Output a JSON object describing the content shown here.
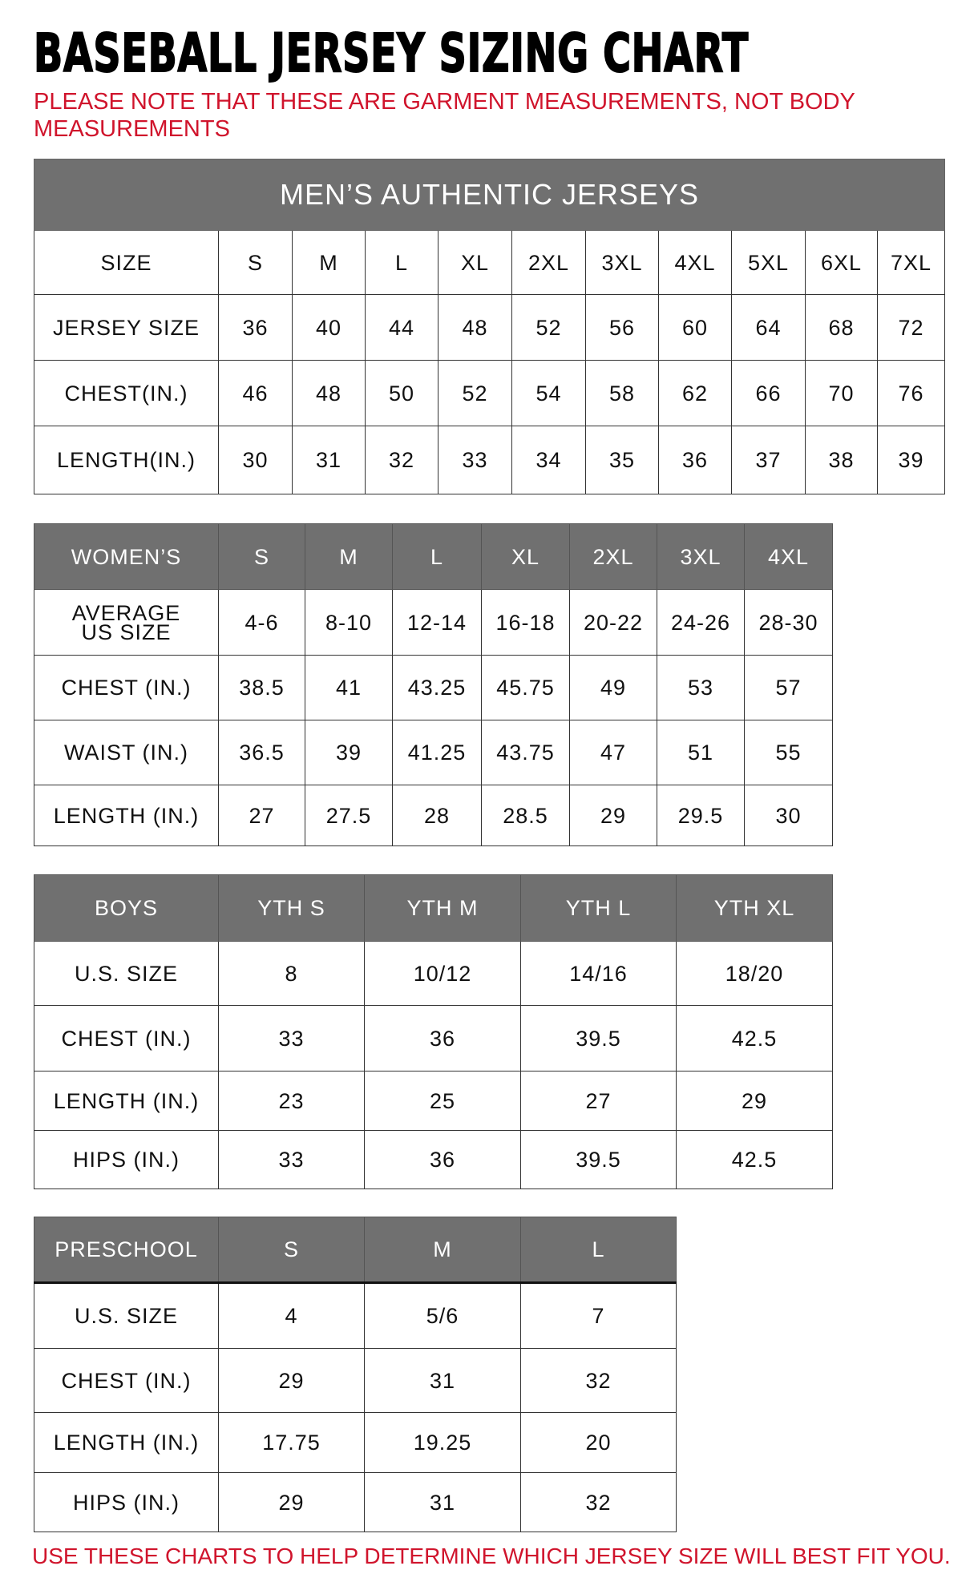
{
  "title": "BASEBALL JERSEY SIZING CHART",
  "note": "PLEASE NOTE THAT THESE ARE GARMENT MEASUREMENTS, NOT BODY MEASUREMENTS",
  "footer": "USE THESE CHARTS TO HELP DETERMINE WHICH JERSEY SIZE WILL BEST FIT YOU.",
  "colors": {
    "header_gray": "#707070",
    "note_red": "#d0142c"
  },
  "tables": [
    {
      "title": "MEN’S AUTHENTIC JERSEYS",
      "header": [
        "SIZE",
        "S",
        "M",
        "L",
        "XL",
        "2XL",
        "3XL",
        "4XL",
        "5XL",
        "6XL",
        "7XL"
      ],
      "header_style": "white",
      "rows": [
        [
          "JERSEY SIZE",
          "36",
          "40",
          "44",
          "48",
          "52",
          "56",
          "60",
          "64",
          "68",
          "72"
        ],
        [
          "CHEST(IN.)",
          "46",
          "48",
          "50",
          "52",
          "54",
          "58",
          "62",
          "66",
          "70",
          "76"
        ],
        [
          "LENGTH(IN.)",
          "30",
          "31",
          "32",
          "33",
          "34",
          "35",
          "36",
          "37",
          "38",
          "39"
        ]
      ]
    },
    {
      "header": [
        "WOMEN’S",
        "S",
        "M",
        "L",
        "XL",
        "2XL",
        "3XL",
        "4XL"
      ],
      "rows": [
        [
          "AVERAGE US SIZE",
          "4-6",
          "8-10",
          "12-14",
          "16-18",
          "20-22",
          "24-26",
          "28-30"
        ],
        [
          "CHEST (IN.)",
          "38.5",
          "41",
          "43.25",
          "45.75",
          "49",
          "53",
          "57"
        ],
        [
          "WAIST (IN.)",
          "36.5",
          "39",
          "41.25",
          "43.75",
          "47",
          "51",
          "55"
        ],
        [
          "LENGTH (IN.)",
          "27",
          "27.5",
          "28",
          "28.5",
          "29",
          "29.5",
          "30"
        ]
      ]
    },
    {
      "header": [
        "BOYS",
        "YTH S",
        "YTH M",
        "YTH L",
        "YTH XL"
      ],
      "rows": [
        [
          "U.S. SIZE",
          "8",
          "10/12",
          "14/16",
          "18/20"
        ],
        [
          "CHEST (IN.)",
          "33",
          "36",
          "39.5",
          "42.5"
        ],
        [
          "LENGTH (IN.)",
          "23",
          "25",
          "27",
          "29"
        ],
        [
          "HIPS (IN.)",
          "33",
          "36",
          "39.5",
          "42.5"
        ]
      ]
    },
    {
      "header": [
        "PRESCHOOL",
        "S",
        "M",
        "L"
      ],
      "rows": [
        [
          "U.S. SIZE",
          "4",
          "5/6",
          "7"
        ],
        [
          "CHEST (IN.)",
          "29",
          "31",
          "32"
        ],
        [
          "LENGTH (IN.)",
          "17.75",
          "19.25",
          "20"
        ],
        [
          "HIPS (IN.)",
          "29",
          "31",
          "32"
        ]
      ]
    }
  ]
}
